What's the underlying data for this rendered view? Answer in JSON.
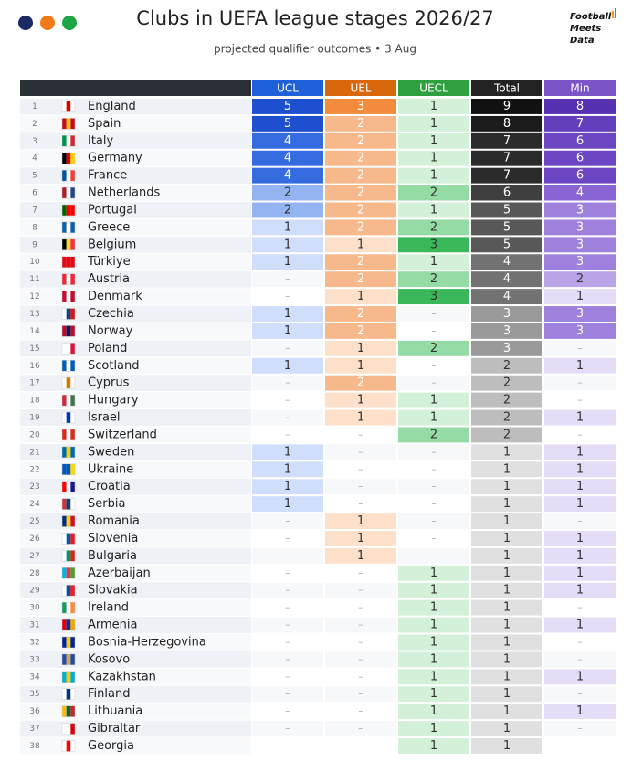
{
  "header": {
    "title": "Clubs in UEFA league stages 2026/27",
    "subtitle": "projected qualifier outcomes • 3 Aug",
    "brand": [
      "Football",
      "Meets",
      "Data"
    ]
  },
  "table": {
    "columns": [
      "UCL",
      "UEL",
      "UECL",
      "Total",
      "Min"
    ],
    "rows": [
      [
        1,
        "England",
        5,
        3,
        1,
        9,
        8
      ],
      [
        2,
        "Spain",
        5,
        2,
        1,
        8,
        7
      ],
      [
        3,
        "Italy",
        4,
        2,
        1,
        7,
        6
      ],
      [
        4,
        "Germany",
        4,
        2,
        1,
        7,
        6
      ],
      [
        5,
        "France",
        4,
        2,
        1,
        7,
        6
      ],
      [
        6,
        "Netherlands",
        2,
        2,
        2,
        6,
        4
      ],
      [
        7,
        "Portugal",
        2,
        2,
        1,
        5,
        3
      ],
      [
        8,
        "Greece",
        1,
        2,
        2,
        5,
        3
      ],
      [
        9,
        "Belgium",
        1,
        1,
        3,
        5,
        3
      ],
      [
        10,
        "Türkiye",
        1,
        2,
        1,
        4,
        3
      ],
      [
        11,
        "Austria",
        "–",
        2,
        2,
        4,
        2
      ],
      [
        12,
        "Denmark",
        "–",
        1,
        3,
        4,
        1
      ],
      [
        13,
        "Czechia",
        1,
        2,
        "–",
        3,
        3
      ],
      [
        14,
        "Norway",
        1,
        2,
        "–",
        3,
        3
      ],
      [
        15,
        "Poland",
        "–",
        1,
        2,
        3,
        "–"
      ],
      [
        16,
        "Scotland",
        1,
        1,
        "–",
        2,
        1
      ],
      [
        17,
        "Cyprus",
        "–",
        2,
        "–",
        2,
        "–"
      ],
      [
        18,
        "Hungary",
        "–",
        1,
        1,
        2,
        "–"
      ],
      [
        19,
        "Israel",
        "–",
        1,
        1,
        2,
        1
      ],
      [
        20,
        "Switzerland",
        "–",
        "–",
        2,
        2,
        "–"
      ],
      [
        21,
        "Sweden",
        1,
        "–",
        "–",
        1,
        1
      ],
      [
        22,
        "Ukraine",
        1,
        "–",
        "–",
        1,
        1
      ],
      [
        23,
        "Croatia",
        1,
        "–",
        "–",
        1,
        1
      ],
      [
        24,
        "Serbia",
        1,
        "–",
        "–",
        1,
        1
      ],
      [
        25,
        "Romania",
        "–",
        1,
        "–",
        1,
        "–"
      ],
      [
        26,
        "Slovenia",
        "–",
        1,
        "–",
        1,
        1
      ],
      [
        27,
        "Bulgaria",
        "–",
        1,
        "–",
        1,
        1
      ],
      [
        28,
        "Azerbaijan",
        "–",
        "–",
        1,
        1,
        1
      ],
      [
        29,
        "Slovakia",
        "–",
        "–",
        1,
        1,
        1
      ],
      [
        30,
        "Ireland",
        "–",
        "–",
        1,
        1,
        "–"
      ],
      [
        31,
        "Armenia",
        "–",
        "–",
        1,
        1,
        1
      ],
      [
        32,
        "Bosnia-Herzegovina",
        "–",
        "–",
        1,
        1,
        "–"
      ],
      [
        33,
        "Kosovo",
        "–",
        "–",
        1,
        1,
        "–"
      ],
      [
        34,
        "Kazakhstan",
        "–",
        "–",
        1,
        1,
        1
      ],
      [
        35,
        "Finland",
        "–",
        "–",
        1,
        1,
        "–"
      ],
      [
        36,
        "Lithuania",
        "–",
        "–",
        1,
        1,
        1
      ],
      [
        37,
        "Gibraltar",
        "–",
        "–",
        1,
        1,
        "–"
      ],
      [
        38,
        "Georgia",
        "–",
        "–",
        1,
        1,
        "–"
      ]
    ]
  }
}
